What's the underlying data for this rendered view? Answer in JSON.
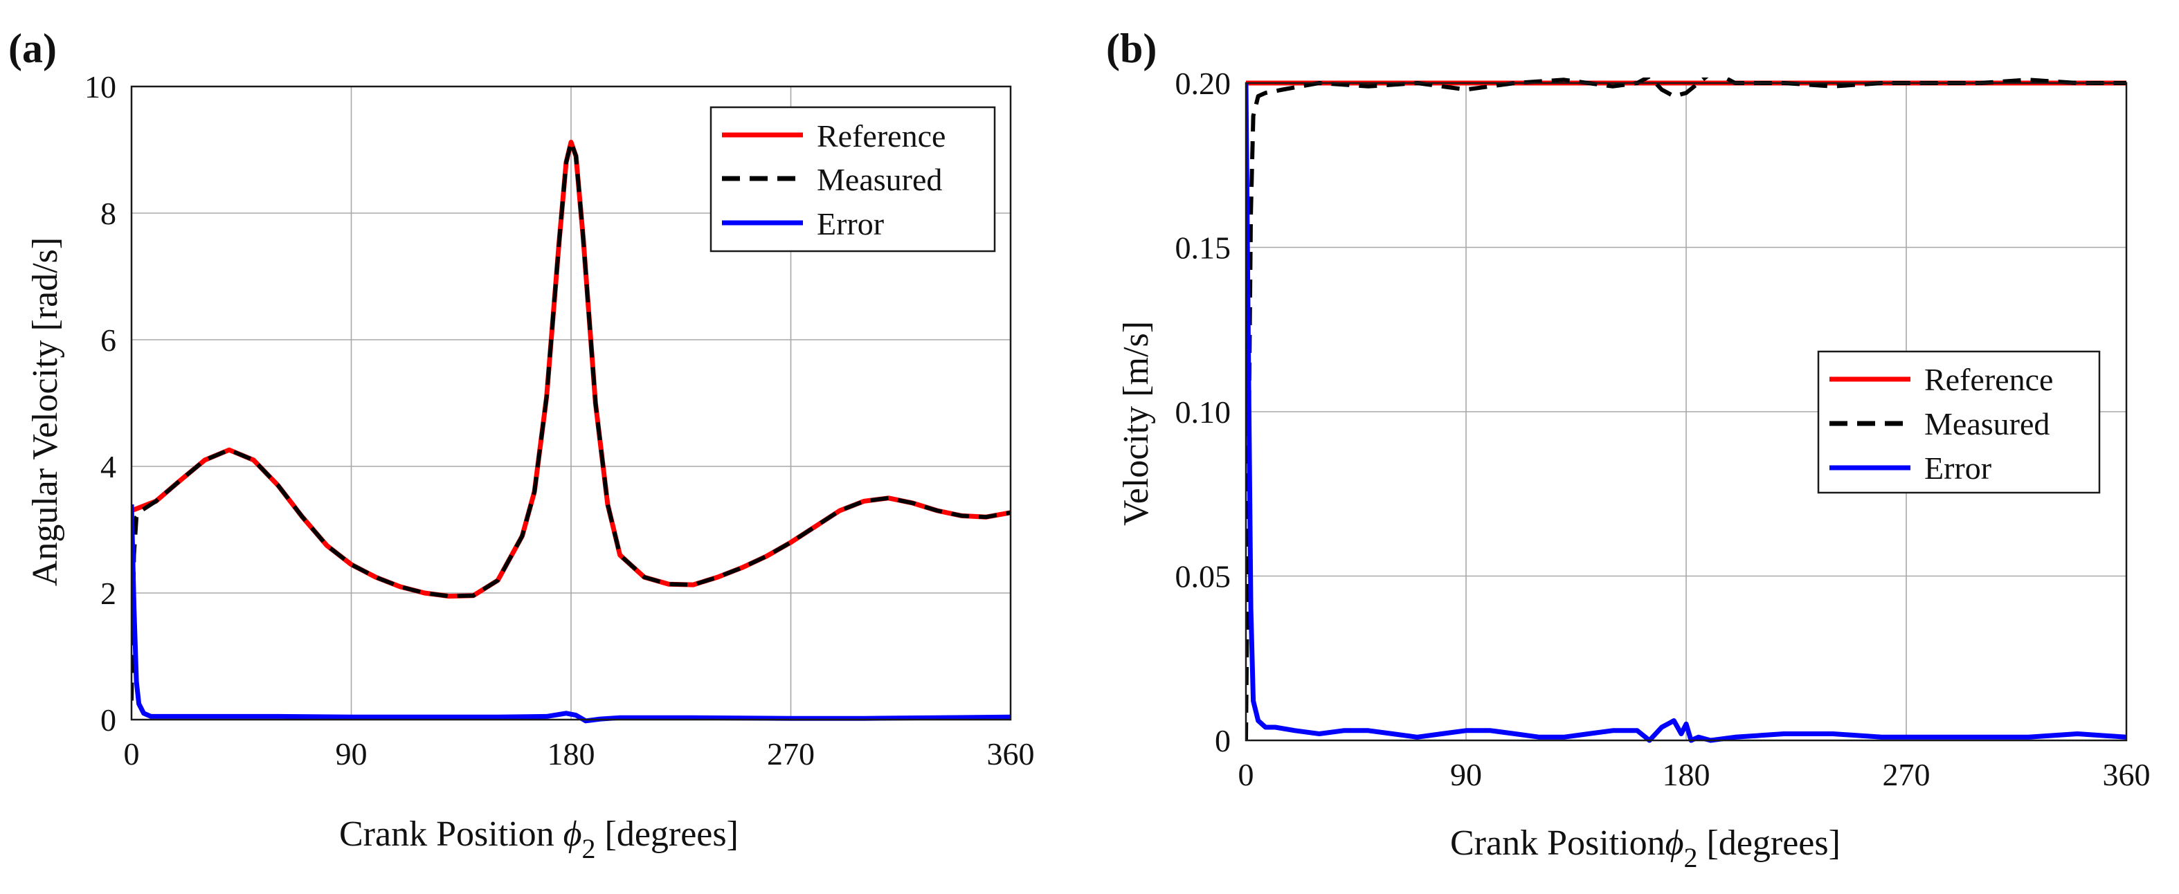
{
  "chart_data": [
    {
      "type": "line",
      "panel_label": "(a)",
      "xlabel_main": "Crank Position ",
      "xlabel_symbol": "ϕ",
      "xlabel_sub": "2",
      "xlabel_unit": " [degrees]",
      "ylabel": "Angular Velocity [rad/s]",
      "xlim": [
        0,
        360
      ],
      "ylim": [
        0,
        10
      ],
      "xticks": [
        0,
        90,
        180,
        270,
        360
      ],
      "yticks": [
        0,
        2,
        4,
        6,
        8,
        10
      ],
      "xtick_labels": [
        "0",
        "90",
        "180",
        "270",
        "360"
      ],
      "ytick_labels": [
        "0",
        "2",
        "4",
        "6",
        "8",
        "10"
      ],
      "grid": true,
      "legend_position": "top-right",
      "series": [
        {
          "name": "Reference",
          "color": "#ff0000",
          "style": "solid",
          "x": [
            0,
            10,
            20,
            30,
            40,
            50,
            60,
            70,
            80,
            90,
            100,
            110,
            120,
            130,
            140,
            150,
            160,
            165,
            170,
            175,
            178,
            180,
            182,
            185,
            190,
            195,
            200,
            210,
            220,
            230,
            240,
            250,
            260,
            270,
            280,
            290,
            300,
            310,
            320,
            330,
            340,
            350,
            360
          ],
          "y": [
            3.3,
            3.45,
            3.78,
            4.1,
            4.26,
            4.1,
            3.7,
            3.2,
            2.75,
            2.45,
            2.25,
            2.1,
            2.0,
            1.95,
            1.96,
            2.2,
            2.9,
            3.6,
            5.1,
            7.5,
            8.8,
            9.12,
            8.9,
            7.6,
            5.0,
            3.4,
            2.6,
            2.25,
            2.14,
            2.13,
            2.25,
            2.4,
            2.58,
            2.8,
            3.05,
            3.3,
            3.45,
            3.5,
            3.42,
            3.3,
            3.22,
            3.2,
            3.27
          ]
        },
        {
          "name": "Measured",
          "color": "#000000",
          "style": "dashed",
          "x": [
            0,
            1,
            2,
            4,
            10,
            20,
            30,
            40,
            50,
            60,
            70,
            80,
            90,
            100,
            110,
            120,
            130,
            140,
            150,
            160,
            165,
            170,
            175,
            178,
            180,
            182,
            185,
            190,
            195,
            200,
            210,
            220,
            230,
            240,
            250,
            260,
            270,
            280,
            290,
            300,
            310,
            320,
            330,
            340,
            350,
            360
          ],
          "y": [
            0.3,
            2.6,
            3.2,
            3.3,
            3.45,
            3.78,
            4.1,
            4.26,
            4.1,
            3.7,
            3.2,
            2.75,
            2.45,
            2.25,
            2.1,
            2.0,
            1.95,
            1.96,
            2.2,
            2.9,
            3.6,
            5.1,
            7.5,
            8.8,
            9.12,
            8.9,
            7.6,
            5.0,
            3.4,
            2.6,
            2.25,
            2.14,
            2.13,
            2.25,
            2.4,
            2.58,
            2.8,
            3.05,
            3.3,
            3.45,
            3.5,
            3.42,
            3.3,
            3.22,
            3.2,
            3.27
          ]
        },
        {
          "name": "Error",
          "color": "#0000ff",
          "style": "solid",
          "x": [
            0,
            1,
            2,
            3,
            5,
            8,
            12,
            30,
            60,
            90,
            120,
            150,
            170,
            178,
            182,
            186,
            192,
            200,
            230,
            270,
            300,
            330,
            360
          ],
          "y": [
            3.4,
            1.8,
            0.6,
            0.25,
            0.1,
            0.05,
            0.05,
            0.05,
            0.05,
            0.04,
            0.04,
            0.04,
            0.05,
            0.1,
            0.07,
            -0.02,
            0.01,
            0.03,
            0.03,
            0.02,
            0.02,
            0.03,
            0.04
          ]
        }
      ]
    },
    {
      "type": "line",
      "panel_label": "(b)",
      "xlabel_main": "Crank Position",
      "xlabel_symbol": "ϕ",
      "xlabel_sub": "2",
      "xlabel_unit": "  [degrees]",
      "ylabel": "Velocity [m/s]",
      "xlim": [
        0,
        360
      ],
      "ylim": [
        0,
        0.2
      ],
      "xticks": [
        0,
        90,
        180,
        270,
        360
      ],
      "yticks": [
        0,
        0.05,
        0.1,
        0.15,
        0.2
      ],
      "xtick_labels": [
        "0",
        "90",
        "180",
        "270",
        "360"
      ],
      "ytick_labels": [
        "0",
        "0.05",
        "0.10",
        "0.15",
        "0.20"
      ],
      "grid": true,
      "legend_position": "center-right",
      "series": [
        {
          "name": "Reference",
          "color": "#ff0000",
          "style": "solid",
          "x": [
            0,
            360
          ],
          "y": [
            0.2,
            0.2
          ]
        },
        {
          "name": "Measured",
          "color": "#000000",
          "style": "dashed",
          "x": [
            0,
            1,
            2,
            3,
            5,
            8,
            15,
            30,
            50,
            70,
            90,
            110,
            130,
            150,
            160,
            165,
            170,
            175,
            180,
            185,
            190,
            195,
            200,
            210,
            220,
            240,
            260,
            280,
            300,
            320,
            340,
            360
          ],
          "y": [
            0.0,
            0.08,
            0.16,
            0.19,
            0.196,
            0.197,
            0.198,
            0.2,
            0.199,
            0.2,
            0.198,
            0.2,
            0.201,
            0.199,
            0.2,
            0.202,
            0.198,
            0.196,
            0.197,
            0.2,
            0.203,
            0.202,
            0.2,
            0.2,
            0.2,
            0.199,
            0.2,
            0.2,
            0.2,
            0.201,
            0.2,
            0.2
          ]
        },
        {
          "name": "Error",
          "color": "#0000ff",
          "style": "solid",
          "x": [
            0,
            1,
            2,
            3,
            5,
            8,
            12,
            20,
            30,
            40,
            50,
            60,
            70,
            80,
            90,
            100,
            110,
            120,
            130,
            140,
            150,
            160,
            165,
            170,
            175,
            178,
            180,
            182,
            185,
            190,
            200,
            220,
            240,
            260,
            280,
            300,
            320,
            340,
            360
          ],
          "y": [
            0.2,
            0.12,
            0.04,
            0.012,
            0.006,
            0.004,
            0.004,
            0.003,
            0.002,
            0.003,
            0.003,
            0.002,
            0.001,
            0.002,
            0.003,
            0.003,
            0.002,
            0.001,
            0.001,
            0.002,
            0.003,
            0.003,
            0.0,
            0.004,
            0.006,
            0.002,
            0.005,
            0.0,
            0.001,
            0.0,
            0.001,
            0.002,
            0.002,
            0.001,
            0.001,
            0.001,
            0.001,
            0.002,
            0.001
          ]
        }
      ]
    }
  ]
}
